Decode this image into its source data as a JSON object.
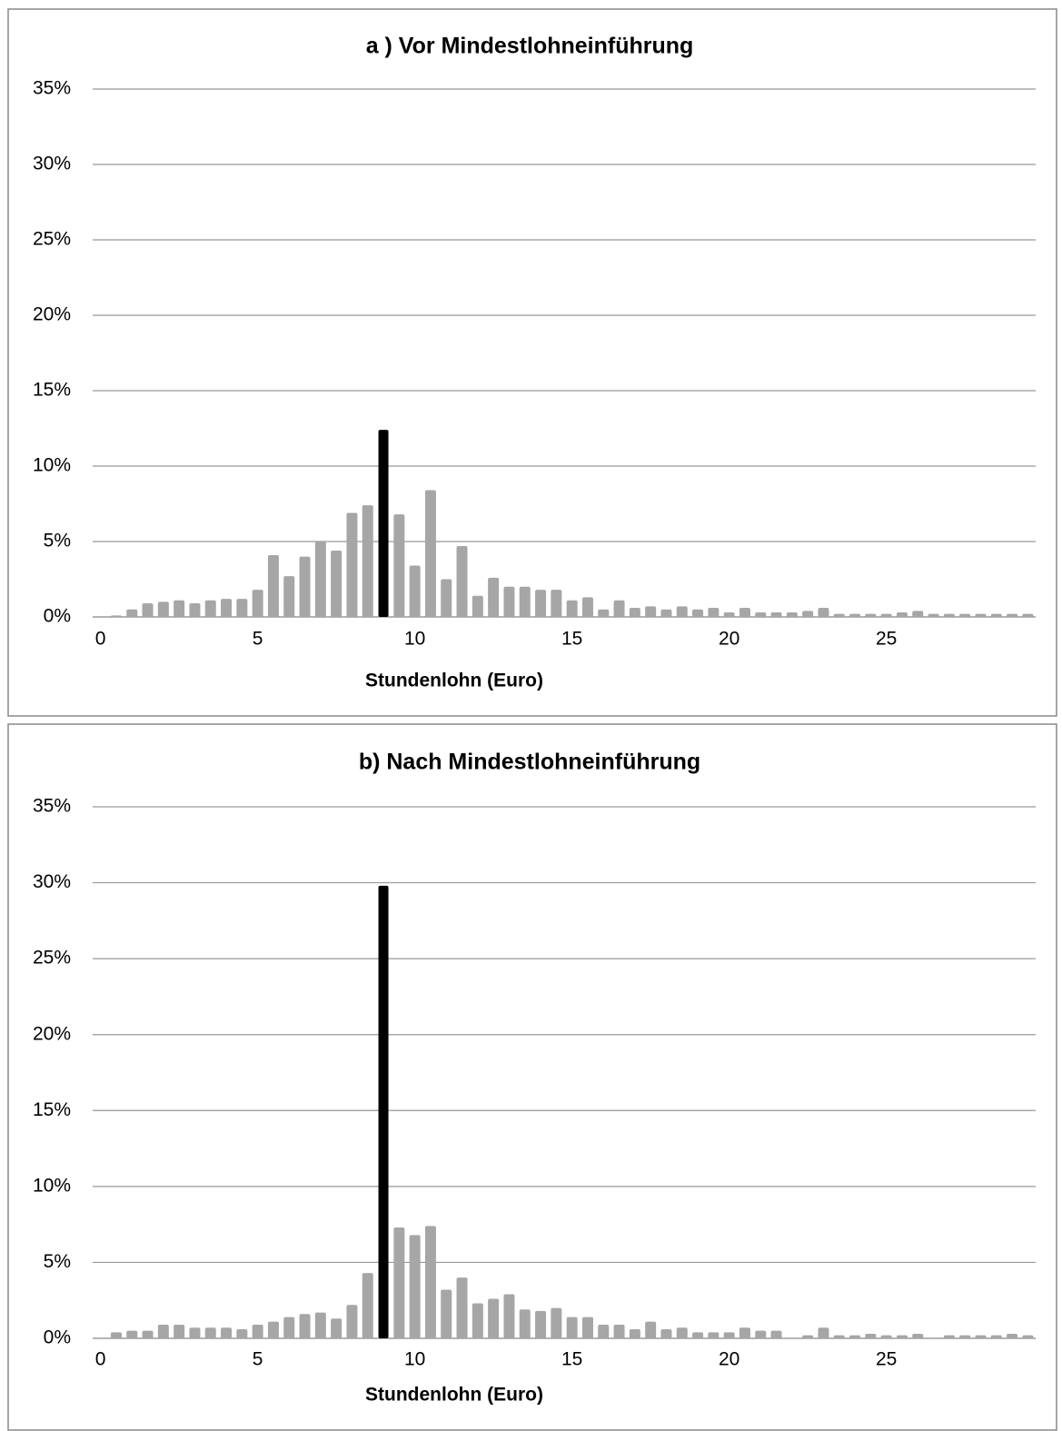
{
  "chart_data": [
    {
      "type": "bar",
      "title": "a ) Vor Mindestlohneinführung",
      "x_label": "Stundenlohn (Euro)",
      "x": [
        0.5,
        1,
        1.5,
        2,
        2.5,
        3,
        3.5,
        4,
        4.5,
        5,
        5.5,
        6,
        6.5,
        7,
        7.5,
        8,
        8.5,
        9,
        9.5,
        10,
        10.5,
        11,
        11.5,
        12,
        12.5,
        13,
        13.5,
        14,
        14.5,
        15,
        15.5,
        16,
        16.5,
        17,
        17.5,
        18,
        18.5,
        19,
        19.5,
        20,
        20.5,
        21,
        21.5,
        22,
        22.5,
        23,
        23.5,
        24,
        24.5,
        25,
        25.5,
        26,
        26.5,
        27,
        27.5,
        28,
        28.5,
        29,
        29.5
      ],
      "values": [
        0.1,
        0.5,
        0.9,
        1.0,
        1.1,
        0.9,
        1.1,
        1.2,
        1.2,
        1.8,
        4.1,
        2.7,
        4.0,
        5.0,
        4.4,
        6.9,
        7.4,
        12.4,
        6.8,
        3.4,
        8.4,
        2.5,
        4.7,
        1.4,
        2.6,
        2.0,
        2.0,
        1.8,
        1.8,
        1.1,
        1.3,
        0.5,
        1.1,
        0.6,
        0.7,
        0.5,
        0.7,
        0.5,
        0.6,
        0.3,
        0.6,
        0.3,
        0.3,
        0.3,
        0.4,
        0.6,
        0.2,
        0.2,
        0.2,
        0.2,
        0.3,
        0.4,
        0.2,
        0.2,
        0.2,
        0.2,
        0.2,
        0.2,
        0.2
      ],
      "colors": [
        "#a6a6a6",
        "#a6a6a6",
        "#a6a6a6",
        "#a6a6a6",
        "#a6a6a6",
        "#a6a6a6",
        "#a6a6a6",
        "#a6a6a6",
        "#a6a6a6",
        "#a6a6a6",
        "#a6a6a6",
        "#a6a6a6",
        "#a6a6a6",
        "#a6a6a6",
        "#a6a6a6",
        "#a6a6a6",
        "#a6a6a6",
        "#000000",
        "#a6a6a6",
        "#a6a6a6",
        "#a6a6a6",
        "#a6a6a6",
        "#a6a6a6",
        "#a6a6a6",
        "#a6a6a6",
        "#a6a6a6",
        "#a6a6a6",
        "#a6a6a6",
        "#a6a6a6",
        "#a6a6a6",
        "#a6a6a6",
        "#a6a6a6",
        "#a6a6a6",
        "#a6a6a6",
        "#a6a6a6",
        "#a6a6a6",
        "#a6a6a6",
        "#a6a6a6",
        "#a6a6a6",
        "#a6a6a6",
        "#a6a6a6",
        "#a6a6a6",
        "#a6a6a6",
        "#a6a6a6",
        "#a6a6a6",
        "#a6a6a6",
        "#a6a6a6",
        "#a6a6a6",
        "#a6a6a6",
        "#a6a6a6",
        "#a6a6a6",
        "#a6a6a6",
        "#a6a6a6",
        "#a6a6a6",
        "#a6a6a6",
        "#a6a6a6",
        "#a6a6a6",
        "#a6a6a6",
        "#a6a6a6"
      ],
      "xlim": [
        -0.25,
        29.75
      ],
      "xticks": [
        0,
        5,
        10,
        15,
        20,
        25
      ],
      "ylim": [
        0,
        35
      ],
      "yticks": [
        {
          "value": 0,
          "label": "0%"
        },
        {
          "value": 5,
          "label": "5%"
        },
        {
          "value": 10,
          "label": "10%"
        },
        {
          "value": 15,
          "label": "15%"
        },
        {
          "value": 20,
          "label": "20%"
        },
        {
          "value": 25,
          "label": "25%"
        },
        {
          "value": 30,
          "label": "30%"
        },
        {
          "value": 35,
          "label": "35%"
        }
      ],
      "grid": true
    },
    {
      "type": "bar",
      "title": "b) Nach Mindestlohneinführung",
      "x_label": "Stundenlohn (Euro)",
      "x": [
        0.5,
        1,
        1.5,
        2,
        2.5,
        3,
        3.5,
        4,
        4.5,
        5,
        5.5,
        6,
        6.5,
        7,
        7.5,
        8,
        8.5,
        9,
        9.5,
        10,
        10.5,
        11,
        11.5,
        12,
        12.5,
        13,
        13.5,
        14,
        14.5,
        15,
        15.5,
        16,
        16.5,
        17,
        17.5,
        18,
        18.5,
        19,
        19.5,
        20,
        20.5,
        21,
        21.5,
        22,
        22.5,
        23,
        23.5,
        24,
        24.5,
        25,
        25.5,
        26,
        26.5,
        27,
        27.5,
        28,
        28.5,
        29,
        29.5
      ],
      "values": [
        0.4,
        0.5,
        0.5,
        0.9,
        0.9,
        0.7,
        0.7,
        0.7,
        0.6,
        0.9,
        1.1,
        1.4,
        1.6,
        1.7,
        1.3,
        2.2,
        4.3,
        29.8,
        7.3,
        6.8,
        7.4,
        3.2,
        4.0,
        2.3,
        2.6,
        2.9,
        1.9,
        1.8,
        2.0,
        1.4,
        1.4,
        0.9,
        0.9,
        0.6,
        1.1,
        0.6,
        0.7,
        0.4,
        0.4,
        0.4,
        0.7,
        0.5,
        0.5,
        0,
        0.2,
        0.7,
        0.2,
        0.2,
        0.3,
        0.2,
        0.2,
        0.3,
        0,
        0.2,
        0.2,
        0.2,
        0.2,
        0.3,
        0.2
      ],
      "colors": [
        "#a6a6a6",
        "#a6a6a6",
        "#a6a6a6",
        "#a6a6a6",
        "#a6a6a6",
        "#a6a6a6",
        "#a6a6a6",
        "#a6a6a6",
        "#a6a6a6",
        "#a6a6a6",
        "#a6a6a6",
        "#a6a6a6",
        "#a6a6a6",
        "#a6a6a6",
        "#a6a6a6",
        "#a6a6a6",
        "#a6a6a6",
        "#000000",
        "#a6a6a6",
        "#a6a6a6",
        "#a6a6a6",
        "#a6a6a6",
        "#a6a6a6",
        "#a6a6a6",
        "#a6a6a6",
        "#a6a6a6",
        "#a6a6a6",
        "#a6a6a6",
        "#a6a6a6",
        "#a6a6a6",
        "#a6a6a6",
        "#a6a6a6",
        "#a6a6a6",
        "#a6a6a6",
        "#a6a6a6",
        "#a6a6a6",
        "#a6a6a6",
        "#a6a6a6",
        "#a6a6a6",
        "#a6a6a6",
        "#a6a6a6",
        "#a6a6a6",
        "#a6a6a6",
        "#a6a6a6",
        "#a6a6a6",
        "#a6a6a6",
        "#a6a6a6",
        "#a6a6a6",
        "#a6a6a6",
        "#a6a6a6",
        "#a6a6a6",
        "#a6a6a6",
        "#a6a6a6",
        "#a6a6a6",
        "#a6a6a6",
        "#a6a6a6",
        "#a6a6a6",
        "#a6a6a6",
        "#a6a6a6"
      ],
      "xlim": [
        -0.25,
        29.75
      ],
      "xticks": [
        0,
        5,
        10,
        15,
        20,
        25
      ],
      "ylim": [
        0,
        35
      ],
      "yticks": [
        {
          "value": 0,
          "label": "0%"
        },
        {
          "value": 5,
          "label": "5%"
        },
        {
          "value": 10,
          "label": "10%"
        },
        {
          "value": 15,
          "label": "15%"
        },
        {
          "value": 20,
          "label": "20%"
        },
        {
          "value": 25,
          "label": "25%"
        },
        {
          "value": 30,
          "label": "30%"
        },
        {
          "value": 35,
          "label": "35%"
        }
      ],
      "grid": true
    }
  ]
}
